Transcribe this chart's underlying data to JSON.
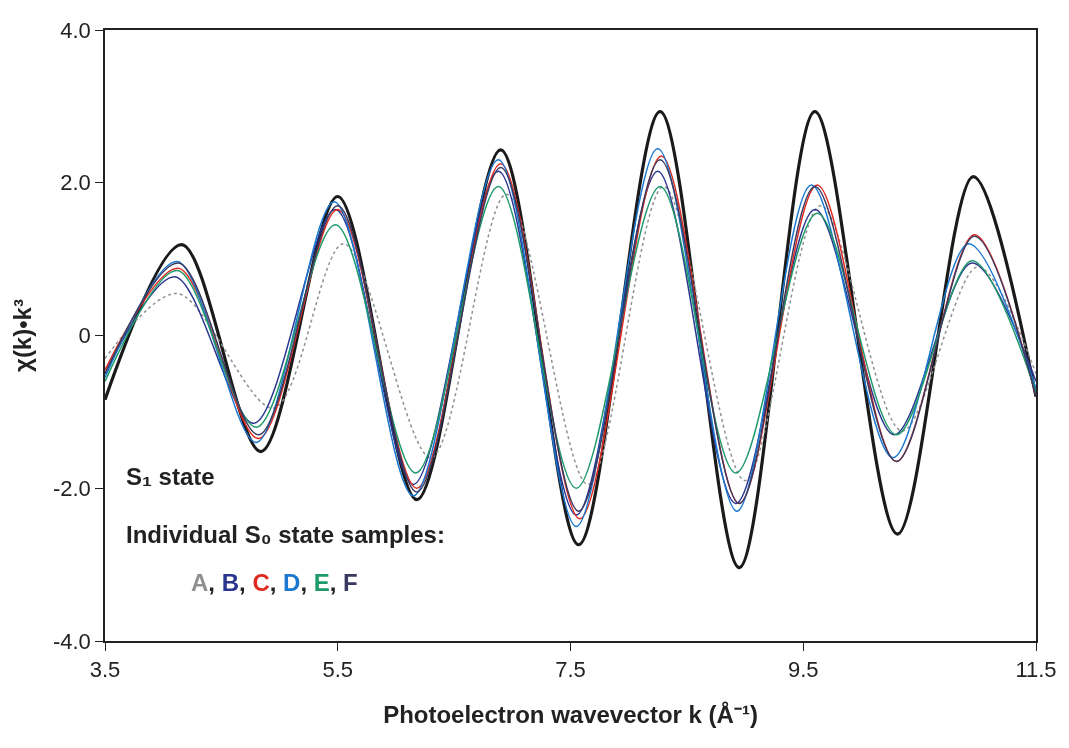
{
  "chart_data": {
    "type": "line",
    "xlabel": "Photoelectron wavevector k (Å⁻¹)",
    "ylabel": "χ(k)•k³",
    "xlim": [
      3.5,
      11.5
    ],
    "ylim": [
      -4.0,
      4.0
    ],
    "xticks": [
      3.5,
      5.5,
      7.5,
      9.5,
      11.5
    ],
    "yticks": [
      {
        "value": -4,
        "label": "-4.0"
      },
      {
        "value": -2,
        "label": "-2.0"
      },
      0,
      {
        "value": 2,
        "label": "2.0"
      },
      {
        "value": 4,
        "label": "4.0"
      }
    ],
    "marker": "none",
    "annotations": [
      "S₁ state",
      "Individual S₀ state samples:",
      "A, B, C, D, E, F"
    ],
    "series": [
      {
        "color": "#1a1a1a",
        "line_style": "solid",
        "x": [
          3.5,
          4.16,
          4.84,
          5.5,
          6.18,
          6.9,
          7.57,
          8.27,
          8.95,
          9.6,
          10.31,
          10.96,
          11.5
        ],
        "values": [
          -0.84,
          1.19,
          -1.52,
          1.82,
          -2.15,
          2.43,
          -2.74,
          2.93,
          -3.04,
          2.93,
          -2.6,
          2.08,
          -0.8
        ]
      },
      {
        "color": "#909090",
        "line_style": "dotted",
        "x": [
          3.5,
          4.12,
          4.95,
          5.55,
          6.3,
          6.95,
          7.65,
          8.3,
          9.0,
          9.65,
          10.35,
          11.0,
          11.5
        ],
        "values": [
          -0.3,
          0.55,
          -0.95,
          1.2,
          -1.6,
          1.85,
          -1.95,
          1.95,
          -1.9,
          1.7,
          -1.25,
          0.9,
          -0.5
        ]
      },
      {
        "color": "#2a3590",
        "line_style": "solid",
        "x": [
          3.5,
          4.1,
          4.78,
          5.48,
          6.15,
          6.88,
          7.55,
          8.25,
          8.92,
          9.6,
          10.28,
          10.95,
          11.5
        ],
        "values": [
          -0.5,
          0.77,
          -1.15,
          1.65,
          -1.95,
          2.15,
          -2.35,
          2.15,
          -2.2,
          1.65,
          -1.3,
          0.95,
          -0.6
        ]
      },
      {
        "color": "#e02a20",
        "line_style": "solid",
        "x": [
          3.5,
          4.13,
          4.82,
          5.5,
          6.18,
          6.9,
          7.58,
          8.28,
          8.95,
          9.62,
          10.3,
          10.97,
          11.5
        ],
        "values": [
          -0.45,
          0.88,
          -1.35,
          1.65,
          -2.0,
          2.25,
          -2.4,
          2.35,
          -2.2,
          1.97,
          -1.65,
          1.32,
          -0.8
        ]
      },
      {
        "color": "#1a78d0",
        "line_style": "solid",
        "x": [
          3.5,
          4.12,
          4.8,
          5.47,
          6.15,
          6.88,
          7.55,
          8.25,
          8.93,
          9.57,
          10.27,
          10.92,
          11.5
        ],
        "values": [
          -0.55,
          0.97,
          -1.4,
          1.75,
          -2.1,
          2.3,
          -2.5,
          2.45,
          -2.3,
          1.97,
          -1.6,
          1.2,
          -0.7
        ]
      },
      {
        "color": "#1f9a6a",
        "line_style": "solid",
        "x": [
          3.5,
          4.12,
          4.8,
          5.48,
          6.17,
          6.88,
          7.55,
          8.27,
          8.92,
          9.62,
          10.3,
          10.95,
          11.5
        ],
        "values": [
          -0.6,
          0.85,
          -1.2,
          1.45,
          -1.8,
          1.95,
          -2.0,
          1.95,
          -1.8,
          1.6,
          -1.3,
          0.98,
          -0.75
        ]
      },
      {
        "color": "#3a3a60",
        "line_style": "solid",
        "x": [
          3.5,
          4.13,
          4.82,
          5.5,
          6.18,
          6.9,
          7.57,
          8.27,
          8.95,
          9.6,
          10.3,
          10.97,
          11.5
        ],
        "values": [
          -0.5,
          0.95,
          -1.3,
          1.7,
          -2.05,
          2.2,
          -2.3,
          2.3,
          -2.2,
          1.95,
          -1.65,
          1.3,
          -0.8
        ]
      }
    ]
  }
}
